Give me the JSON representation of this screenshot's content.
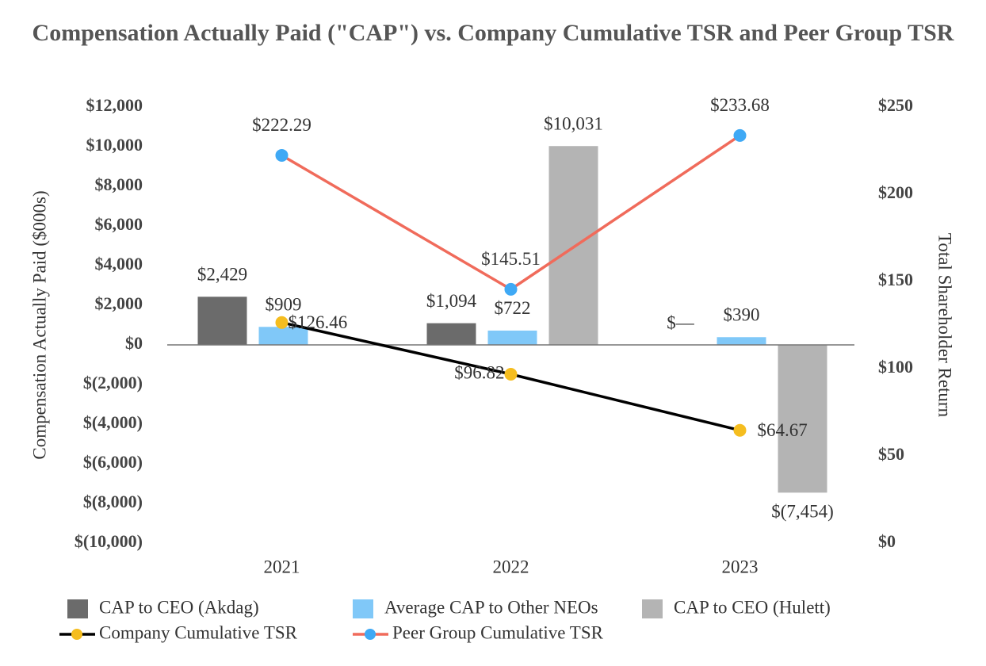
{
  "chart_data": {
    "type": "bar",
    "title": "Compensation Actually Paid (\"CAP\")  vs. Company Cumulative TSR  and Peer Group TSR",
    "ylabel": "Compensation Actually Paid ($000s)",
    "y2label": "Total Shareholder  Return",
    "categories": [
      "2021",
      "2022",
      "2023"
    ],
    "ylim": [
      -10000,
      12000
    ],
    "yticks": [
      {
        "value": -10000,
        "label": "$(10,000)"
      },
      {
        "value": -8000,
        "label": "$(8,000)"
      },
      {
        "value": -6000,
        "label": "$(6,000)"
      },
      {
        "value": -4000,
        "label": "$(4,000)"
      },
      {
        "value": -2000,
        "label": "$(2,000)"
      },
      {
        "value": 0,
        "label": "$0"
      },
      {
        "value": 2000,
        "label": "$2,000"
      },
      {
        "value": 4000,
        "label": "$4,000"
      },
      {
        "value": 6000,
        "label": "$6,000"
      },
      {
        "value": 8000,
        "label": "$8,000"
      },
      {
        "value": 10000,
        "label": "$10,000"
      },
      {
        "value": 12000,
        "label": "$12,000"
      }
    ],
    "y2lim": [
      0,
      250
    ],
    "y2ticks": [
      {
        "value": 0,
        "label": "$0"
      },
      {
        "value": 50,
        "label": "$50"
      },
      {
        "value": 100,
        "label": "$100"
      },
      {
        "value": 150,
        "label": "$150"
      },
      {
        "value": 200,
        "label": "$200"
      },
      {
        "value": 250,
        "label": "$250"
      }
    ],
    "series": [
      {
        "name": "CAP to CEO (Akdag)",
        "type": "bar",
        "color": "#6b6b6b",
        "values": [
          2429,
          1094,
          0
        ],
        "value_labels": [
          "$2,429",
          "$1,094",
          "$—"
        ]
      },
      {
        "name": "Average CAP to Other NEOs",
        "type": "bar",
        "color": "#80c8f8",
        "values": [
          909,
          722,
          390
        ],
        "value_labels": [
          "$909",
          "$722",
          "$390"
        ]
      },
      {
        "name": "CAP  to CEO (Hulett)",
        "type": "bar",
        "color": "#b4b4b4",
        "values": [
          null,
          10031,
          -7454
        ],
        "value_labels": [
          null,
          "$10,031",
          "$(7,454)"
        ]
      },
      {
        "name": "Company Cumulative TSR",
        "type": "line",
        "axis": "y2",
        "color": "#000000",
        "marker_color": "#f5bd1f",
        "values": [
          126.46,
          96.82,
          64.67
        ],
        "value_labels": [
          "$126.46",
          "$96.82",
          "$64.67"
        ]
      },
      {
        "name": "Peer Group Cumulative TSR",
        "type": "line",
        "axis": "y2",
        "color": "#f06b5b",
        "marker_color": "#3fa9f5",
        "values": [
          222.29,
          145.51,
          233.68
        ],
        "value_labels": [
          "$222.29",
          "$145.51",
          "$233.68"
        ]
      }
    ]
  }
}
